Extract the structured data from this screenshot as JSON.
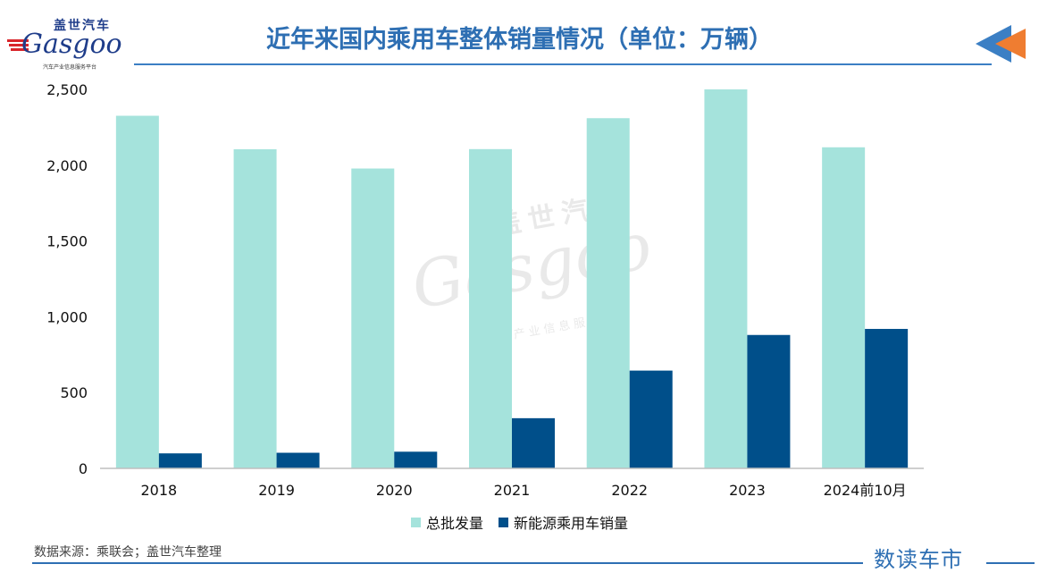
{
  "logo": {
    "cn": "盖世汽车",
    "en": "Gasgoo",
    "tagline": "汽车产业信息服务平台"
  },
  "header": {
    "title": "近年来国内乘用车整体销量情况（单位：万辆）"
  },
  "colors": {
    "series1": "#a5e3dc",
    "series2": "#004f8a",
    "title": "#2e6fb3",
    "arrow_blue": "#3b7fc4",
    "arrow_orange": "#ef7d31"
  },
  "chart_data": {
    "type": "bar",
    "title": "近年来国内乘用车整体销量情况（单位：万辆）",
    "categories": [
      "2018",
      "2019",
      "2020",
      "2021",
      "2022",
      "2023",
      "2024前10月"
    ],
    "series": [
      {
        "name": "总批发量",
        "values": [
          2326,
          2105,
          1978,
          2106,
          2310,
          2500,
          2118
        ]
      },
      {
        "name": "新能源乘用车销量",
        "values": [
          99,
          103,
          110,
          331,
          645,
          880,
          920
        ]
      }
    ],
    "ylim": [
      0,
      2500
    ],
    "yticks": [
      0,
      500,
      1000,
      1500,
      2000,
      2500
    ],
    "ytick_labels": [
      "0",
      "500",
      "1,000",
      "1,500",
      "2,000",
      "2,500"
    ],
    "xlabel": "",
    "ylabel": "",
    "grid": false,
    "legend_position": "bottom"
  },
  "footer": {
    "source": "数据来源：乘联会；盖世汽车整理",
    "brand": "数读车市"
  }
}
